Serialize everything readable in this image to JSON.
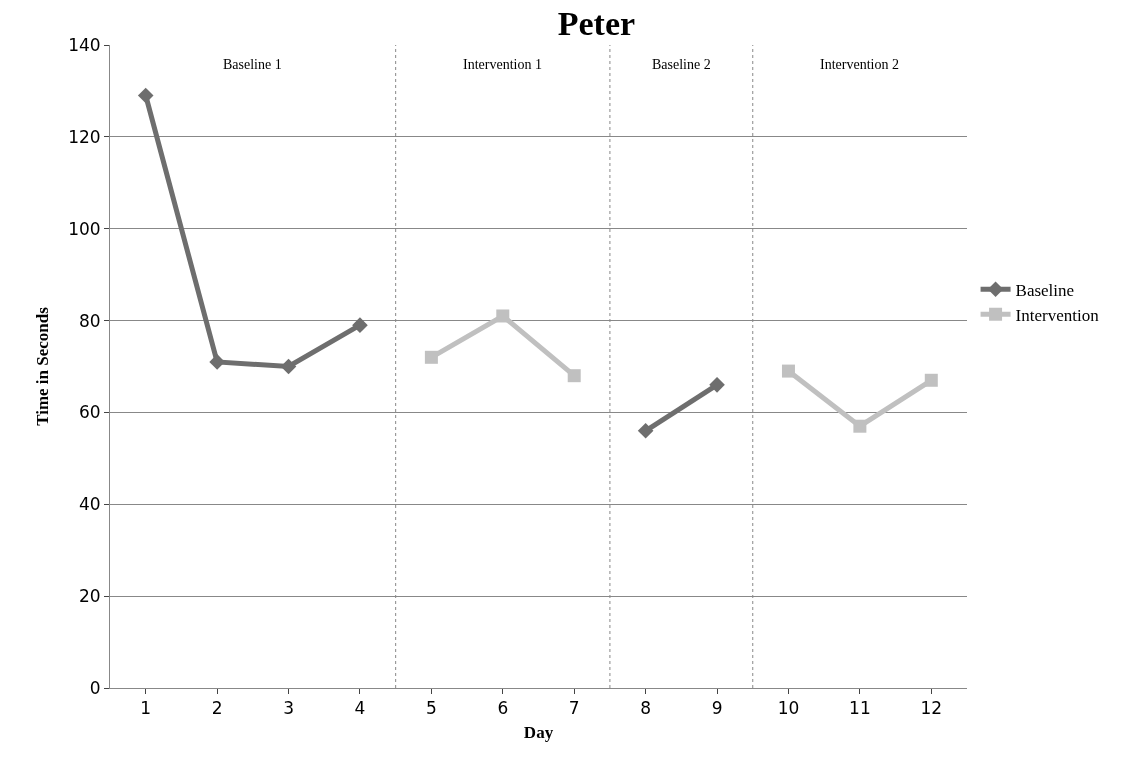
{
  "chart_data": {
    "type": "line",
    "title": "Peter",
    "xlabel": "Day",
    "ylabel": "Time in Seconds",
    "x": [
      1,
      2,
      3,
      4,
      5,
      6,
      7,
      8,
      9,
      10,
      11,
      12
    ],
    "xlim": [
      0.5,
      12.5
    ],
    "xticks": [
      1,
      2,
      3,
      4,
      5,
      6,
      7,
      8,
      9,
      10,
      11,
      12
    ],
    "ylim": [
      0,
      140
    ],
    "yticks": [
      0,
      20,
      40,
      60,
      80,
      100,
      120,
      140
    ],
    "series": [
      {
        "name": "Baseline",
        "color": "#6e6e6e",
        "marker": "diamond",
        "values": [
          129,
          71,
          70,
          79,
          null,
          null,
          null,
          56,
          66,
          null,
          null,
          null
        ]
      },
      {
        "name": "Intervention",
        "color": "#c0c0c0",
        "marker": "square",
        "values": [
          null,
          null,
          null,
          null,
          72,
          81,
          68,
          null,
          null,
          69,
          57,
          67
        ]
      }
    ],
    "annotations": [
      "Baseline 1",
      "Intervention 1",
      "Baseline 2",
      "Intervention 2"
    ],
    "ref_lines": [
      {
        "axis": "x",
        "value": 4.5,
        "line_style": "dotted",
        "color": "#888888"
      },
      {
        "axis": "x",
        "value": 7.5,
        "line_style": "dotted",
        "color": "#888888"
      },
      {
        "axis": "x",
        "value": 9.5,
        "line_style": "dotted",
        "color": "#888888"
      }
    ],
    "grid": "y",
    "legend": "right",
    "line_style": "solid"
  }
}
